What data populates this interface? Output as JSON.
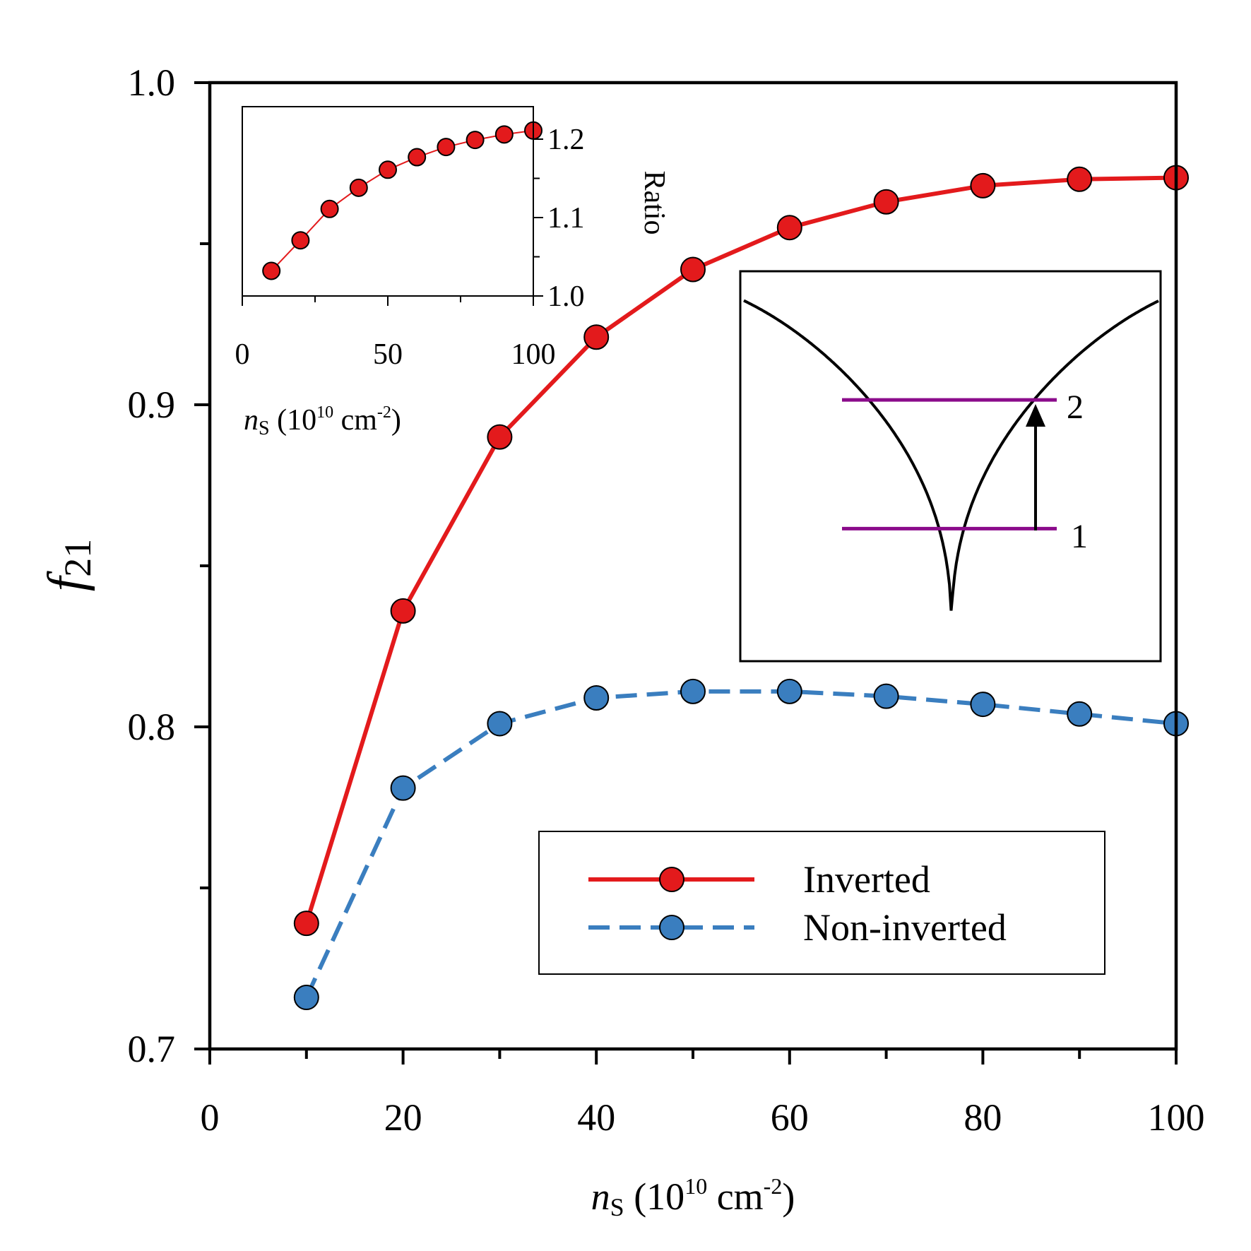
{
  "colors": {
    "inverted": "#e31a1c",
    "non_inverted": "#3a7ebf",
    "energy_levels": "#8b0b8b",
    "axis": "#000000"
  },
  "chart_data": [
    {
      "id": "main",
      "type": "line",
      "ylabel_main": "f",
      "ylabel_sub": "21",
      "xlabel_var": "n",
      "xlabel_sub": "S",
      "xlabel_unit_open": " (10",
      "xlabel_exp1": "10",
      "xlabel_unit_mid": " cm",
      "xlabel_exp2": "-2",
      "xlabel_unit_close": ")",
      "xlim": [
        0,
        100
      ],
      "ylim": [
        0.7,
        1.0
      ],
      "xticks": [
        "0",
        "20",
        "40",
        "60",
        "80",
        "100"
      ],
      "yticks": [
        "0.7",
        "0.8",
        "0.9",
        "1.0"
      ],
      "x": [
        10,
        20,
        30,
        40,
        50,
        60,
        70,
        80,
        90,
        100
      ],
      "series": [
        {
          "name": "Inverted",
          "style": "solid",
          "values": [
            0.739,
            0.836,
            0.89,
            0.921,
            0.942,
            0.955,
            0.963,
            0.968,
            0.97,
            0.9705
          ]
        },
        {
          "name": "Non-inverted",
          "style": "dashed",
          "values": [
            0.716,
            0.781,
            0.801,
            0.809,
            0.811,
            0.811,
            0.8095,
            0.807,
            0.804,
            0.801
          ]
        }
      ],
      "legend_position": "lower-right"
    },
    {
      "id": "ratio_inset",
      "type": "line",
      "ylabel": "Ratio",
      "xlim": [
        0,
        100
      ],
      "ylim": [
        1.0,
        1.2
      ],
      "xticks": [
        "0",
        "50",
        "100"
      ],
      "yticks": [
        "1.0",
        "1.1",
        "1.2"
      ],
      "x": [
        10,
        20,
        30,
        40,
        50,
        60,
        70,
        80,
        90,
        100
      ],
      "values": [
        1.032,
        1.071,
        1.111,
        1.138,
        1.161,
        1.177,
        1.19,
        1.199,
        1.206,
        1.211
      ]
    },
    {
      "id": "potential_inset",
      "type": "diagram",
      "level_labels": [
        "2",
        "1"
      ],
      "levels": [
        {
          "label": "2",
          "level": 0.67
        },
        {
          "label": "1",
          "level": 0.34
        }
      ]
    }
  ]
}
